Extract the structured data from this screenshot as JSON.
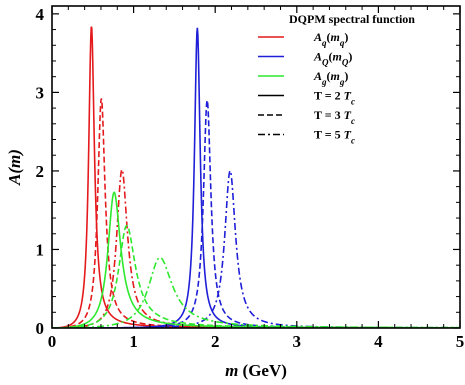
{
  "chart_data": {
    "type": "line",
    "title": "",
    "xlabel_var": "m",
    "xlabel_unit": "(GeV)",
    "ylabel": "A(m)",
    "xlim": [
      0,
      5
    ],
    "ylim": [
      0,
      4.1
    ],
    "xticks": [
      0,
      1,
      2,
      3,
      4,
      5
    ],
    "yticks": [
      0,
      1,
      2,
      3,
      4
    ],
    "grid": false,
    "legend": {
      "title": "DQPM spectral function",
      "placement": "top-right",
      "entries": [
        {
          "base": "A",
          "sub": "q",
          "arg": "m",
          "argsub": "q",
          "color": "#e41a1c",
          "dash": "solid"
        },
        {
          "base": "A",
          "sub": "Q",
          "arg": "m",
          "argsub": "Q",
          "color": "#1f1fd8",
          "dash": "solid"
        },
        {
          "base": "A",
          "sub": "g",
          "arg": "m",
          "argsub": "g",
          "color": "#2ee82e",
          "dash": "solid"
        },
        {
          "label": "T = 2 T",
          "sub": "c",
          "color": "#000000",
          "dash": "solid"
        },
        {
          "label": "T = 3 T",
          "sub": "c",
          "color": "#000000",
          "dash": "dashed"
        },
        {
          "label": "T = 5 T",
          "sub": "c",
          "color": "#000000",
          "dash": "dashdot"
        }
      ]
    },
    "series": [
      {
        "particle": "q",
        "T": "2Tc",
        "color": "#e41a1c",
        "dash": "solid",
        "peak_m": 0.48,
        "peak_A": 3.82,
        "width": 0.085
      },
      {
        "particle": "q",
        "T": "3Tc",
        "color": "#e41a1c",
        "dash": "dashed",
        "peak_m": 0.6,
        "peak_A": 2.9,
        "width": 0.11
      },
      {
        "particle": "q",
        "T": "5Tc",
        "color": "#e41a1c",
        "dash": "dashdot",
        "peak_m": 0.85,
        "peak_A": 2.0,
        "width": 0.16
      },
      {
        "particle": "Q",
        "T": "2Tc",
        "color": "#1f1fd8",
        "dash": "solid",
        "peak_m": 1.78,
        "peak_A": 3.82,
        "width": 0.085
      },
      {
        "particle": "Q",
        "T": "3Tc",
        "color": "#1f1fd8",
        "dash": "dashed",
        "peak_m": 1.9,
        "peak_A": 2.9,
        "width": 0.11
      },
      {
        "particle": "Q",
        "T": "5Tc",
        "color": "#1f1fd8",
        "dash": "dashdot",
        "peak_m": 2.18,
        "peak_A": 2.0,
        "width": 0.16
      },
      {
        "particle": "g",
        "T": "2Tc",
        "color": "#2ee82e",
        "dash": "solid",
        "peak_m": 0.75,
        "peak_A": 1.7,
        "width": 0.19
      },
      {
        "particle": "g",
        "T": "3Tc",
        "color": "#2ee82e",
        "dash": "dashed",
        "peak_m": 0.9,
        "peak_A": 1.28,
        "width": 0.25
      },
      {
        "particle": "g",
        "T": "5Tc",
        "color": "#2ee82e",
        "dash": "dashdot",
        "peak_m": 1.3,
        "peak_A": 0.88,
        "width": 0.36
      }
    ]
  }
}
